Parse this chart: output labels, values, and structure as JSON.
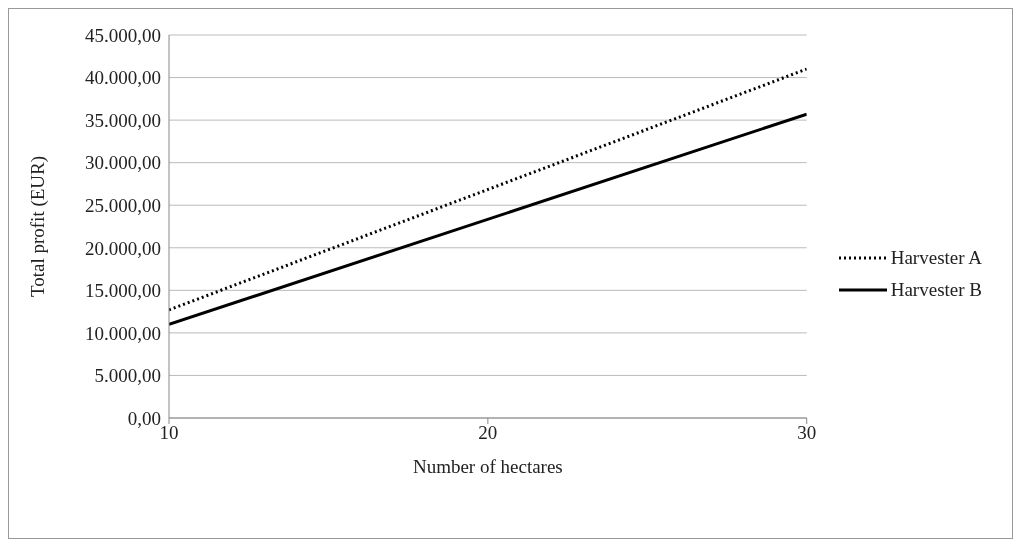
{
  "chart_data": {
    "type": "line",
    "xlabel": "Number of hectares",
    "ylabel": "Total profit (EUR)",
    "x": [
      10,
      30
    ],
    "series": [
      {
        "name": "Harvester A",
        "color": "#000000",
        "line_style": "dotted",
        "values": [
          12700,
          41000
        ]
      },
      {
        "name": "Harvester B",
        "color": "#000000",
        "line_style": "solid",
        "values": [
          11000,
          35700
        ]
      }
    ],
    "xlim": [
      10,
      30
    ],
    "xticks": [
      10,
      20,
      30
    ],
    "ylim": [
      0,
      45000
    ],
    "yticks": [
      {
        "value": 0,
        "label": "0,00"
      },
      {
        "value": 5000,
        "label": "5.000,00"
      },
      {
        "value": 10000,
        "label": "10.000,00"
      },
      {
        "value": 15000,
        "label": "15.000,00"
      },
      {
        "value": 20000,
        "label": "20.000,00"
      },
      {
        "value": 25000,
        "label": "25.000,00"
      },
      {
        "value": 30000,
        "label": "30.000,00"
      },
      {
        "value": 35000,
        "label": "35.000,00"
      },
      {
        "value": 40000,
        "label": "40.000,00"
      },
      {
        "value": 45000,
        "label": "45.000,00"
      }
    ],
    "grid": "y",
    "legend": "right",
    "marker": "none"
  }
}
